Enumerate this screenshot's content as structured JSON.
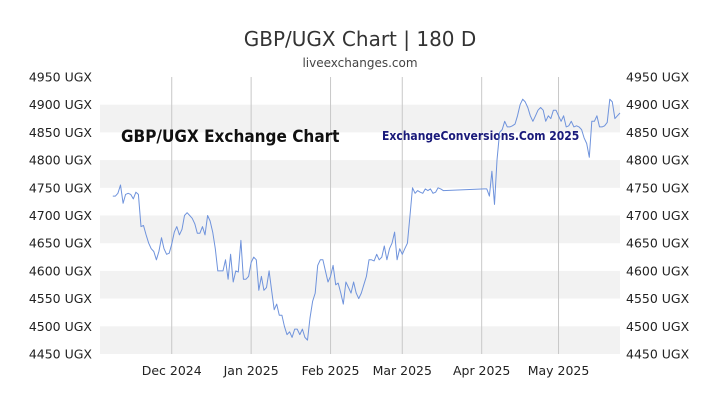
{
  "chart_data": {
    "type": "line",
    "title": "GBP/UGX Chart | 180 D",
    "subtitle": "liveexchanges.com",
    "watermark_left": "GBP/UGX Exchange Chart",
    "watermark_right": "ExchangeConversions.Com 2025",
    "xlabel": "",
    "ylabel": "",
    "ylim": [
      4450,
      4950
    ],
    "yticks": [
      4950,
      4900,
      4850,
      4800,
      4750,
      4700,
      4650,
      4600,
      4550,
      4500,
      4450
    ],
    "y_unit": "UGX",
    "ytick_labels_left": [
      "4950 UGX",
      "4900 UGX",
      "4850 UGX",
      "4800 UGX",
      "4750 UGX",
      "4700 UGX",
      "4650 UGX",
      "4600 UGX",
      "4550 UGX",
      "4500 UGX",
      "4450 UGX"
    ],
    "ytick_labels_right": [
      "4950 UGX",
      "4900 UGX",
      "4850 UGX",
      "4800 UGX",
      "4750 UGX",
      "4700 UGX",
      "4650 UGX",
      "4600 UGX",
      "4550 UGX",
      "4500 UGX",
      "4450 UGX"
    ],
    "xticks": [
      {
        "day": 28,
        "label": "Dec 2024"
      },
      {
        "day": 59,
        "label": "Jan 2025"
      },
      {
        "day": 90,
        "label": "Feb 2025"
      },
      {
        "day": 118,
        "label": "Mar 2025"
      },
      {
        "day": 149,
        "label": "Apr 2025"
      },
      {
        "day": 179,
        "label": "May 2025"
      }
    ],
    "xlim": [
      0,
      203
    ],
    "grid": true,
    "line_color": "#6f93dc",
    "band_color": "#f2f2f2",
    "series": [
      {
        "name": "",
        "points": [
          [
            5,
            4735
          ],
          [
            6,
            4735
          ],
          [
            7,
            4740
          ],
          [
            8,
            4755
          ],
          [
            9,
            4722
          ],
          [
            10,
            4738
          ],
          [
            11,
            4740
          ],
          [
            12,
            4738
          ],
          [
            13,
            4730
          ],
          [
            14,
            4742
          ],
          [
            15,
            4738
          ],
          [
            16,
            4680
          ],
          [
            17,
            4682
          ],
          [
            18,
            4665
          ],
          [
            19,
            4650
          ],
          [
            20,
            4640
          ],
          [
            21,
            4635
          ],
          [
            22,
            4620
          ],
          [
            23,
            4635
          ],
          [
            24,
            4660
          ],
          [
            25,
            4640
          ],
          [
            26,
            4630
          ],
          [
            27,
            4632
          ],
          [
            28,
            4648
          ],
          [
            29,
            4670
          ],
          [
            30,
            4680
          ],
          [
            31,
            4665
          ],
          [
            32,
            4675
          ],
          [
            33,
            4700
          ],
          [
            34,
            4705
          ],
          [
            35,
            4700
          ],
          [
            36,
            4695
          ],
          [
            37,
            4685
          ],
          [
            38,
            4668
          ],
          [
            39,
            4668
          ],
          [
            40,
            4680
          ],
          [
            41,
            4665
          ],
          [
            42,
            4700
          ],
          [
            43,
            4690
          ],
          [
            44,
            4670
          ],
          [
            45,
            4640
          ],
          [
            46,
            4600
          ],
          [
            47,
            4600
          ],
          [
            48,
            4600
          ],
          [
            49,
            4620
          ],
          [
            50,
            4585
          ],
          [
            51,
            4630
          ],
          [
            52,
            4580
          ],
          [
            53,
            4600
          ],
          [
            54,
            4598
          ],
          [
            55,
            4655
          ],
          [
            56,
            4585
          ],
          [
            57,
            4585
          ],
          [
            58,
            4590
          ],
          [
            59,
            4615
          ],
          [
            60,
            4625
          ],
          [
            61,
            4620
          ],
          [
            62,
            4565
          ],
          [
            63,
            4590
          ],
          [
            64,
            4565
          ],
          [
            65,
            4570
          ],
          [
            66,
            4600
          ],
          [
            67,
            4565
          ],
          [
            68,
            4530
          ],
          [
            69,
            4540
          ],
          [
            70,
            4520
          ],
          [
            71,
            4520
          ],
          [
            72,
            4500
          ],
          [
            73,
            4485
          ],
          [
            74,
            4490
          ],
          [
            75,
            4480
          ],
          [
            76,
            4495
          ],
          [
            77,
            4495
          ],
          [
            78,
            4485
          ],
          [
            79,
            4495
          ],
          [
            80,
            4480
          ],
          [
            81,
            4475
          ],
          [
            82,
            4515
          ],
          [
            83,
            4545
          ],
          [
            84,
            4560
          ],
          [
            85,
            4610
          ],
          [
            86,
            4620
          ],
          [
            87,
            4620
          ],
          [
            88,
            4600
          ],
          [
            89,
            4580
          ],
          [
            90,
            4590
          ],
          [
            91,
            4610
          ],
          [
            92,
            4575
          ],
          [
            93,
            4578
          ],
          [
            94,
            4560
          ],
          [
            95,
            4540
          ],
          [
            96,
            4580
          ],
          [
            97,
            4570
          ],
          [
            98,
            4560
          ],
          [
            99,
            4580
          ],
          [
            100,
            4560
          ],
          [
            101,
            4550
          ],
          [
            102,
            4560
          ],
          [
            103,
            4575
          ],
          [
            104,
            4590
          ],
          [
            105,
            4620
          ],
          [
            106,
            4620
          ],
          [
            107,
            4618
          ],
          [
            108,
            4630
          ],
          [
            109,
            4620
          ],
          [
            110,
            4625
          ],
          [
            111,
            4645
          ],
          [
            112,
            4620
          ],
          [
            113,
            4640
          ],
          [
            114,
            4650
          ],
          [
            115,
            4670
          ],
          [
            116,
            4620
          ],
          [
            117,
            4640
          ],
          [
            118,
            4630
          ],
          [
            119,
            4640
          ],
          [
            120,
            4650
          ],
          [
            121,
            4700
          ],
          [
            122,
            4750
          ],
          [
            123,
            4740
          ],
          [
            124,
            4745
          ],
          [
            125,
            4742
          ],
          [
            126,
            4740
          ],
          [
            127,
            4748
          ],
          [
            128,
            4745
          ],
          [
            129,
            4748
          ],
          [
            130,
            4740
          ],
          [
            131,
            4742
          ],
          [
            132,
            4750
          ],
          [
            133,
            4748
          ],
          [
            134,
            4745
          ],
          [
            150,
            4748
          ],
          [
            151,
            4748
          ],
          [
            152,
            4735
          ],
          [
            153,
            4780
          ],
          [
            154,
            4720
          ],
          [
            155,
            4800
          ],
          [
            156,
            4850
          ],
          [
            157,
            4855
          ],
          [
            158,
            4870
          ],
          [
            159,
            4860
          ],
          [
            160,
            4860
          ],
          [
            161,
            4862
          ],
          [
            162,
            4865
          ],
          [
            163,
            4880
          ],
          [
            164,
            4900
          ],
          [
            165,
            4910
          ],
          [
            166,
            4905
          ],
          [
            167,
            4895
          ],
          [
            168,
            4880
          ],
          [
            169,
            4870
          ],
          [
            170,
            4880
          ],
          [
            171,
            4890
          ],
          [
            172,
            4895
          ],
          [
            173,
            4890
          ],
          [
            174,
            4870
          ],
          [
            175,
            4880
          ],
          [
            176,
            4875
          ],
          [
            177,
            4890
          ],
          [
            178,
            4890
          ],
          [
            179,
            4880
          ],
          [
            180,
            4870
          ],
          [
            181,
            4880
          ],
          [
            182,
            4860
          ],
          [
            183,
            4862
          ],
          [
            184,
            4870
          ],
          [
            185,
            4860
          ],
          [
            186,
            4862
          ],
          [
            187,
            4860
          ],
          [
            188,
            4855
          ],
          [
            189,
            4840
          ],
          [
            190,
            4830
          ],
          [
            191,
            4805
          ],
          [
            192,
            4870
          ],
          [
            193,
            4870
          ],
          [
            194,
            4880
          ],
          [
            195,
            4860
          ],
          [
            196,
            4860
          ],
          [
            197,
            4862
          ],
          [
            198,
            4868
          ],
          [
            199,
            4910
          ],
          [
            200,
            4905
          ],
          [
            201,
            4875
          ],
          [
            202,
            4880
          ],
          [
            203,
            4885
          ]
        ]
      }
    ]
  }
}
